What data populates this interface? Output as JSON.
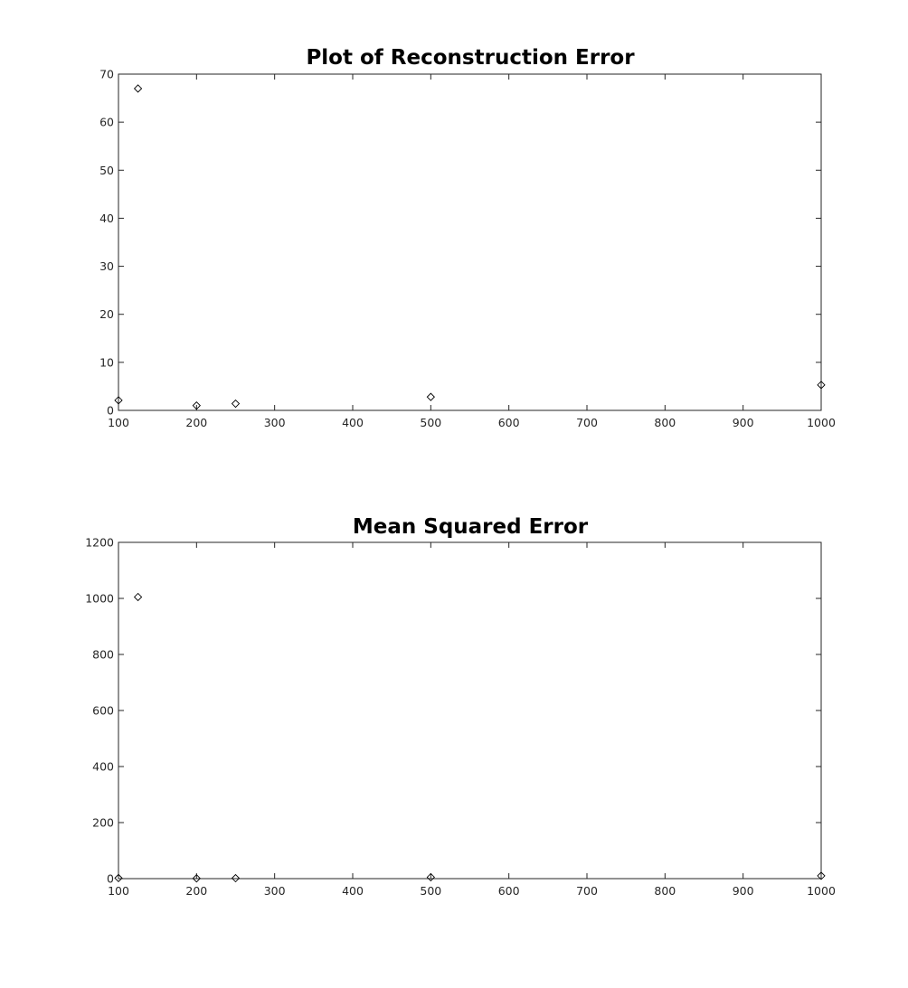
{
  "chart_data": [
    {
      "type": "scatter",
      "title": "Plot of Reconstruction Error",
      "xlabel": "",
      "ylabel": "",
      "xlim": [
        100,
        1000
      ],
      "ylim": [
        0,
        70
      ],
      "xticks": [
        100,
        200,
        300,
        400,
        500,
        600,
        700,
        800,
        900,
        1000
      ],
      "yticks": [
        0,
        10,
        20,
        30,
        40,
        50,
        60,
        70
      ],
      "grid": false,
      "legend": "none",
      "marker": "diamond",
      "marker_color": "#000000",
      "series": [
        {
          "x": [
            100,
            125,
            200,
            250,
            500,
            1000
          ],
          "y": [
            2.1,
            67,
            1.0,
            1.4,
            2.8,
            5.3
          ]
        }
      ]
    },
    {
      "type": "scatter",
      "title": "Mean Squared Error",
      "xlabel": "",
      "ylabel": "",
      "xlim": [
        100,
        1000
      ],
      "ylim": [
        0,
        1200
      ],
      "xticks": [
        100,
        200,
        300,
        400,
        500,
        600,
        700,
        800,
        900,
        1000
      ],
      "yticks": [
        0,
        200,
        400,
        600,
        800,
        1000,
        1200
      ],
      "grid": false,
      "legend": "none",
      "marker": "diamond",
      "marker_color": "#000000",
      "series": [
        {
          "x": [
            100,
            125,
            200,
            250,
            500,
            1000
          ],
          "y": [
            2,
            1005,
            1,
            1.5,
            5,
            10
          ]
        }
      ]
    }
  ]
}
